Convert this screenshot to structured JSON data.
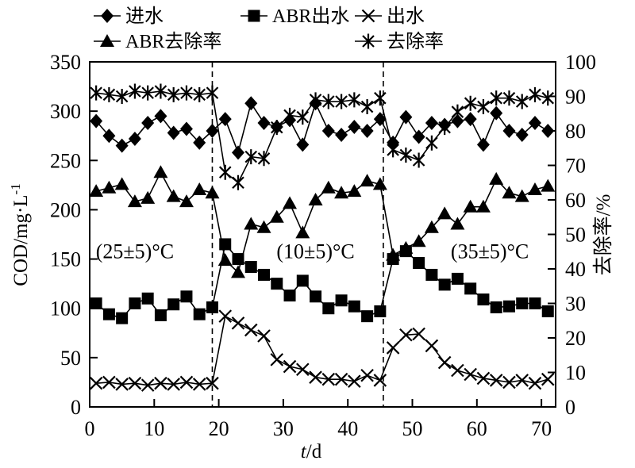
{
  "chart_data": {
    "type": "line",
    "title": "",
    "xlabel_italic": "t",
    "xlabel_rest": "/d",
    "ylabel_left_base": "COD/mg·L",
    "ylabel_left_sup": "-1",
    "ylabel_right": "去除率/%",
    "x_axis": {
      "min": 0,
      "max": 70,
      "span": 72.2,
      "ticks": [
        0,
        10,
        20,
        30,
        40,
        50,
        60,
        70
      ]
    },
    "left_axis": {
      "min": 0,
      "max": 350,
      "ticks": [
        0,
        50,
        100,
        150,
        200,
        250,
        300,
        350
      ]
    },
    "right_axis": {
      "min": 0,
      "max": 100,
      "ticks": [
        0,
        10,
        20,
        30,
        40,
        50,
        60,
        70,
        80,
        90,
        100
      ]
    },
    "grid": false,
    "colors": {
      "fg": "#000000",
      "bg": "#ffffff"
    },
    "x": [
      1,
      3,
      5,
      7,
      9,
      11,
      13,
      15,
      17,
      19,
      21,
      23,
      25,
      27,
      29,
      31,
      33,
      35,
      37,
      39,
      41,
      43,
      45,
      47,
      49,
      51,
      53,
      55,
      57,
      59,
      61,
      63,
      65,
      67,
      69,
      71
    ],
    "series": [
      {
        "id": "influent",
        "name": "进水",
        "marker": "diamond",
        "axis": "left",
        "values": [
          290,
          275,
          265,
          272,
          288,
          295,
          278,
          282,
          268,
          280,
          292,
          258,
          308,
          288,
          284,
          291,
          266,
          308,
          280,
          276,
          284,
          280,
          292,
          268,
          294,
          274,
          288,
          286,
          290,
          292,
          266,
          298,
          280,
          276,
          288,
          280
        ]
      },
      {
        "id": "abr-effluent",
        "name": "ABR出水",
        "marker": "square",
        "axis": "left",
        "values": [
          105,
          94,
          90,
          105,
          110,
          93,
          104,
          112,
          94,
          101,
          165,
          150,
          142,
          134,
          125,
          113,
          128,
          112,
          100,
          108,
          102,
          92,
          97,
          150,
          158,
          146,
          134,
          124,
          130,
          120,
          109,
          101,
          102,
          105,
          105,
          97
        ]
      },
      {
        "id": "effluent",
        "name": "出水",
        "marker": "x",
        "axis": "left",
        "values": [
          24,
          25,
          23,
          24,
          22,
          24,
          23,
          25,
          23,
          24,
          92,
          85,
          78,
          72,
          48,
          41,
          38,
          30,
          28,
          28,
          26,
          32,
          27,
          60,
          73,
          74,
          62,
          45,
          37,
          33,
          29,
          27,
          25,
          27,
          24,
          28
        ]
      },
      {
        "id": "abr-removal",
        "name": "ABR去除率",
        "marker": "triangle",
        "axis": "right",
        "values": [
          62.5,
          63.5,
          64.5,
          59.5,
          60.5,
          68,
          61,
          59.5,
          63,
          62,
          42.5,
          39,
          53,
          52,
          55,
          59,
          50.5,
          60,
          63.5,
          62,
          62.5,
          65.5,
          64.5,
          44,
          46,
          48,
          52,
          56,
          53,
          58,
          58,
          66,
          62,
          61,
          63,
          64
        ]
      },
      {
        "id": "removal",
        "name": "去除率",
        "marker": "asterisk",
        "axis": "right",
        "values": [
          91,
          90.5,
          90,
          91.5,
          91,
          91.5,
          90.5,
          91,
          90.5,
          91,
          68,
          65,
          72.5,
          72,
          81,
          84.5,
          84,
          89,
          88.5,
          88.5,
          89,
          87,
          89.5,
          74.5,
          73,
          71.5,
          76.5,
          81,
          85.5,
          88,
          87,
          89.5,
          89.5,
          88.5,
          90.5,
          89.5
        ]
      }
    ],
    "legend": {
      "position": "top",
      "items": [
        {
          "label": "进水",
          "series": 0
        },
        {
          "label": "ABR出水",
          "series": 1
        },
        {
          "label": "出水",
          "series": 2
        },
        {
          "label": "ABR去除率",
          "series": 3
        },
        {
          "label": "去除率",
          "series": 4
        }
      ]
    },
    "annotations": [
      {
        "text": "(25±5)°C",
        "day": 7,
        "cod": 158
      },
      {
        "text": "(10±5)°C",
        "day": 35,
        "cod": 158
      },
      {
        "text": "(35±5)°C",
        "day": 62,
        "cod": 158
      }
    ],
    "phase_dividers_day": [
      19,
      45.5
    ]
  }
}
